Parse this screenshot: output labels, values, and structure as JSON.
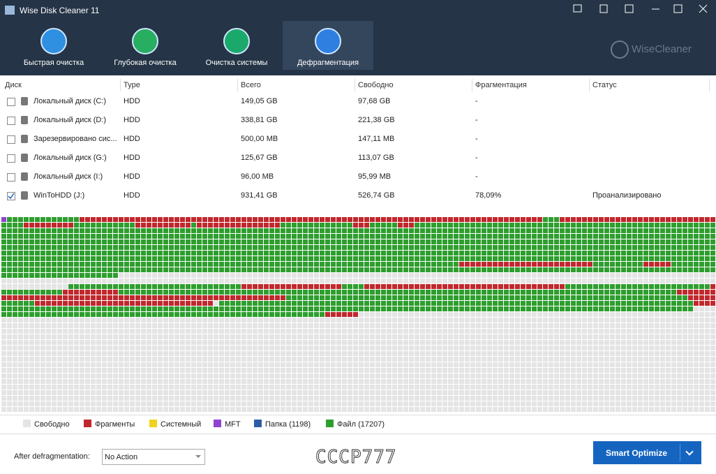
{
  "window": {
    "title": "Wise Disk Cleaner 11"
  },
  "tabs": [
    "Быстрая очистка",
    "Глубокая очистка",
    "Очистка системы",
    "Дефрагментация"
  ],
  "active_tab": 3,
  "brand": "WiseCleaner",
  "table": {
    "columns": [
      "Диск",
      "Type",
      "Всего",
      "Свободно",
      "Фрагментация",
      "Статус"
    ],
    "rows": [
      {
        "name": "Локальный диск (C:)",
        "type": "HDD",
        "total": "149,05 GB",
        "free": "97,68 GB",
        "fragmentation": "-",
        "checked": false
      },
      {
        "name": "Локальный диск (D:)",
        "type": "HDD",
        "total": "338,81 GB",
        "free": "221,38 GB",
        "fragmentation": "-",
        "checked": false
      },
      {
        "name": "Зарезервировано сис...",
        "type": "HDD",
        "total": "500,00 MB",
        "free": "147,11 MB",
        "fragmentation": "-",
        "checked": false
      },
      {
        "name": "Локальный диск (G:)",
        "type": "HDD",
        "total": "125,67 GB",
        "free": "113,07 GB",
        "fragmentation": "-",
        "checked": false
      },
      {
        "name": "Локальный диск (I:)",
        "type": "HDD",
        "total": "96,00 MB",
        "free": "95,99 MB",
        "fragmentation": "-",
        "checked": false
      },
      {
        "name": "WinToHDD (J:)",
        "type": "HDD",
        "total": "931,41 GB",
        "free": "526,74 GB",
        "fragmentation": "78,09%",
        "status": "Проанализировано",
        "checked": true
      }
    ]
  },
  "legend": [
    {
      "name": "Свободно",
      "color": "#e4e4e4"
    },
    {
      "name": "Фрагменты",
      "color": "#c0282d"
    },
    {
      "name": "Системный",
      "color": "#f2d21e"
    },
    {
      "name": "MFT",
      "color": "#8e44d0"
    },
    {
      "name": "Папка (1198)",
      "color": "#2c5ea8"
    },
    {
      "name": "Файл (17207)",
      "color": "#2e9e2e"
    }
  ],
  "footer": {
    "after_label": "After defragmentation:",
    "select": "No Action",
    "watermark": "CCCP777",
    "button": "Smart Optimize"
  }
}
